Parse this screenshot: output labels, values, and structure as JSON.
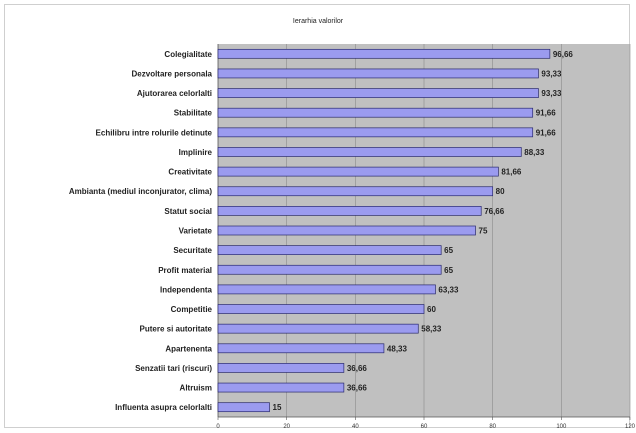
{
  "chart_data": {
    "type": "bar",
    "orientation": "horizontal",
    "title": "Ierarhia valorilor",
    "categories": [
      "Colegialitate",
      "Dezvoltare personala",
      "Ajutorarea celorlalti",
      "Stabilitate",
      "Echilibru intre rolurile detinute",
      "Implinire",
      "Creativitate",
      "Ambianta (mediul inconjurator, clima)",
      "Statut social",
      "Varietate",
      "Securitate",
      "Profit material",
      "Independenta",
      "Competitie",
      "Putere si autoritate",
      "Apartenenta",
      "Senzatii tari (riscuri)",
      "Altruism",
      "Influenta asupra celorlalti"
    ],
    "values": [
      96.66,
      93.33,
      93.33,
      91.66,
      91.66,
      88.33,
      81.66,
      80,
      76.66,
      75,
      65,
      65,
      63.33,
      60,
      58.33,
      48.33,
      36.66,
      36.66,
      15
    ],
    "value_labels": [
      "96,66",
      "93,33",
      "93,33",
      "91,66",
      "91,66",
      "88,33",
      "81,66",
      "80",
      "76,66",
      "75",
      "65",
      "65",
      "63,33",
      "60",
      "58,33",
      "48,33",
      "36,66",
      "36,66",
      "15"
    ],
    "xlim": [
      0,
      120
    ],
    "xticks": [
      0,
      20,
      40,
      60,
      80,
      100,
      120
    ],
    "grid": true,
    "legend": "none",
    "colors": {
      "bar_fill": "#9b9bef",
      "bar_stroke": "#2a2a6e",
      "plot_background": "#c0c0c0",
      "gridline": "#8a8a8a"
    }
  }
}
